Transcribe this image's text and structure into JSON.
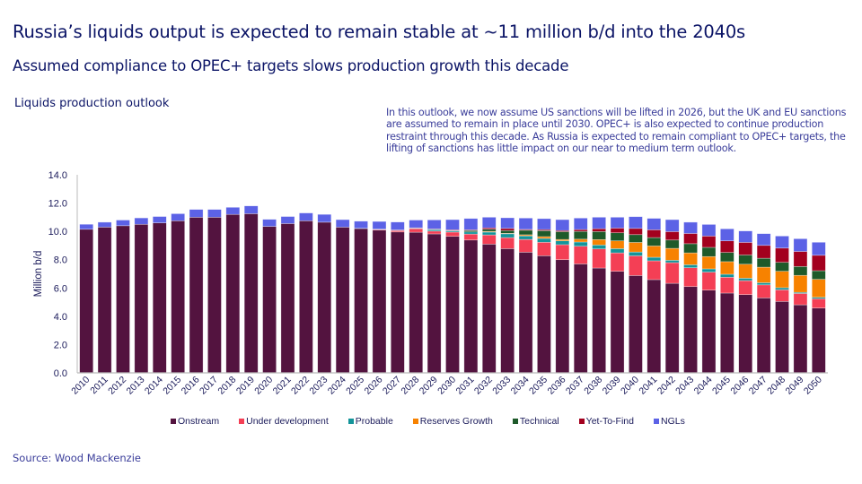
{
  "title": "Russia’s liquids output is expected to remain stable at ~11 million b/d into the 2040s",
  "subtitle": "Assumed compliance to OPEC+ targets slows production growth this decade",
  "note": "In this outlook, we now assume US sanctions will be lifted in 2026, but the UK and EU sanctions are assumed to remain in place until 2030. OPEC+ is also expected to continue production restraint through this decade. As Russia is expected to remain compliant to OPEC+ targets, the lifting of sanctions has little impact on our near to medium term outlook.",
  "source": "Source: Wood Mackenzie",
  "chart_data": {
    "type": "bar",
    "stacked": true,
    "title": "Liquids production outlook",
    "xlabel": "",
    "ylabel": "Million b/d",
    "ylim": [
      0,
      14
    ],
    "yticks": [
      "0.0",
      "2.0",
      "4.0",
      "6.0",
      "8.0",
      "10.0",
      "12.0",
      "14.0"
    ],
    "grid": false,
    "legend_position": "bottom",
    "categories": [
      "2010",
      "2011",
      "2012",
      "2013",
      "2014",
      "2015",
      "2016",
      "2017",
      "2018",
      "2019",
      "2020",
      "2021",
      "2022",
      "2023",
      "2024",
      "2025",
      "2026",
      "2027",
      "2028",
      "2029",
      "2030",
      "2031",
      "2032",
      "2033",
      "2034",
      "2035",
      "2036",
      "2037",
      "2038",
      "2039",
      "2040",
      "2041",
      "2042",
      "2043",
      "2044",
      "2045",
      "2046",
      "2047",
      "2048",
      "2049",
      "2050"
    ],
    "series": [
      {
        "name": "Onstream",
        "color": "#53133f",
        "values": [
          10.15,
          10.3,
          10.4,
          10.5,
          10.6,
          10.75,
          11.0,
          11.0,
          11.2,
          11.25,
          10.35,
          10.55,
          10.75,
          10.65,
          10.3,
          10.2,
          10.09,
          9.96,
          9.94,
          9.82,
          9.65,
          9.39,
          9.1,
          8.78,
          8.53,
          8.28,
          8.0,
          7.7,
          7.41,
          7.18,
          6.88,
          6.59,
          6.33,
          6.1,
          5.85,
          5.64,
          5.53,
          5.3,
          5.05,
          4.81,
          4.58
        ]
      },
      {
        "name": "Under development",
        "color": "#f43f55",
        "values": [
          0,
          0,
          0,
          0,
          0,
          0,
          0,
          0,
          0,
          0,
          0,
          0,
          0,
          0,
          0,
          0,
          0.05,
          0.1,
          0.25,
          0.2,
          0.3,
          0.42,
          0.65,
          0.78,
          0.9,
          0.95,
          1.06,
          1.25,
          1.35,
          1.3,
          1.39,
          1.33,
          1.46,
          1.33,
          1.27,
          1.12,
          0.99,
          0.92,
          0.82,
          0.8,
          0.66
        ]
      },
      {
        "name": "Probable",
        "color": "#13949a",
        "values": [
          0,
          0,
          0,
          0,
          0,
          0,
          0,
          0,
          0,
          0,
          0,
          0,
          0,
          0,
          0,
          0.02,
          0.02,
          0.02,
          0.03,
          0.1,
          0.08,
          0.15,
          0.2,
          0.27,
          0.25,
          0.27,
          0.27,
          0.3,
          0.28,
          0.3,
          0.27,
          0.25,
          0.17,
          0.21,
          0.23,
          0.21,
          0.17,
          0.15,
          0.15,
          0.08,
          0.1
        ]
      },
      {
        "name": "Reserves Growth",
        "color": "#f78200",
        "values": [
          0,
          0,
          0,
          0,
          0,
          0,
          0,
          0,
          0,
          0,
          0,
          0,
          0,
          0,
          0,
          0,
          0,
          0,
          0,
          0,
          0,
          0,
          0.05,
          0.03,
          0.08,
          0.13,
          0.1,
          0.2,
          0.38,
          0.55,
          0.68,
          0.8,
          0.84,
          0.84,
          0.87,
          0.89,
          0.99,
          1.1,
          1.16,
          1.2,
          1.27
        ]
      },
      {
        "name": "Technical",
        "color": "#1e5a2a",
        "values": [
          0,
          0,
          0,
          0,
          0,
          0,
          0,
          0,
          0,
          0,
          0,
          0,
          0,
          0,
          0,
          0,
          0,
          0,
          0,
          0.02,
          0.03,
          0.1,
          0.15,
          0.2,
          0.32,
          0.42,
          0.55,
          0.55,
          0.57,
          0.57,
          0.55,
          0.59,
          0.59,
          0.65,
          0.65,
          0.65,
          0.65,
          0.63,
          0.63,
          0.63,
          0.61
        ]
      },
      {
        "name": "Yet-To-Find",
        "color": "#a3001e",
        "values": [
          0,
          0,
          0,
          0,
          0,
          0,
          0,
          0,
          0,
          0,
          0,
          0,
          0,
          0,
          0,
          0,
          0,
          0.02,
          0.03,
          0.03,
          0.05,
          0.05,
          0.1,
          0.15,
          0.06,
          0.08,
          0.08,
          0.13,
          0.2,
          0.33,
          0.44,
          0.55,
          0.59,
          0.72,
          0.8,
          0.82,
          0.89,
          0.91,
          1.01,
          1.06,
          1.09
        ]
      },
      {
        "name": "NGLs",
        "color": "#5c62e6",
        "values": [
          0.35,
          0.35,
          0.4,
          0.45,
          0.45,
          0.5,
          0.55,
          0.55,
          0.5,
          0.55,
          0.5,
          0.5,
          0.55,
          0.55,
          0.53,
          0.5,
          0.54,
          0.56,
          0.55,
          0.64,
          0.72,
          0.8,
          0.75,
          0.75,
          0.8,
          0.77,
          0.77,
          0.81,
          0.81,
          0.77,
          0.83,
          0.81,
          0.85,
          0.8,
          0.82,
          0.85,
          0.81,
          0.83,
          0.85,
          0.9,
          0.92
        ]
      }
    ]
  }
}
